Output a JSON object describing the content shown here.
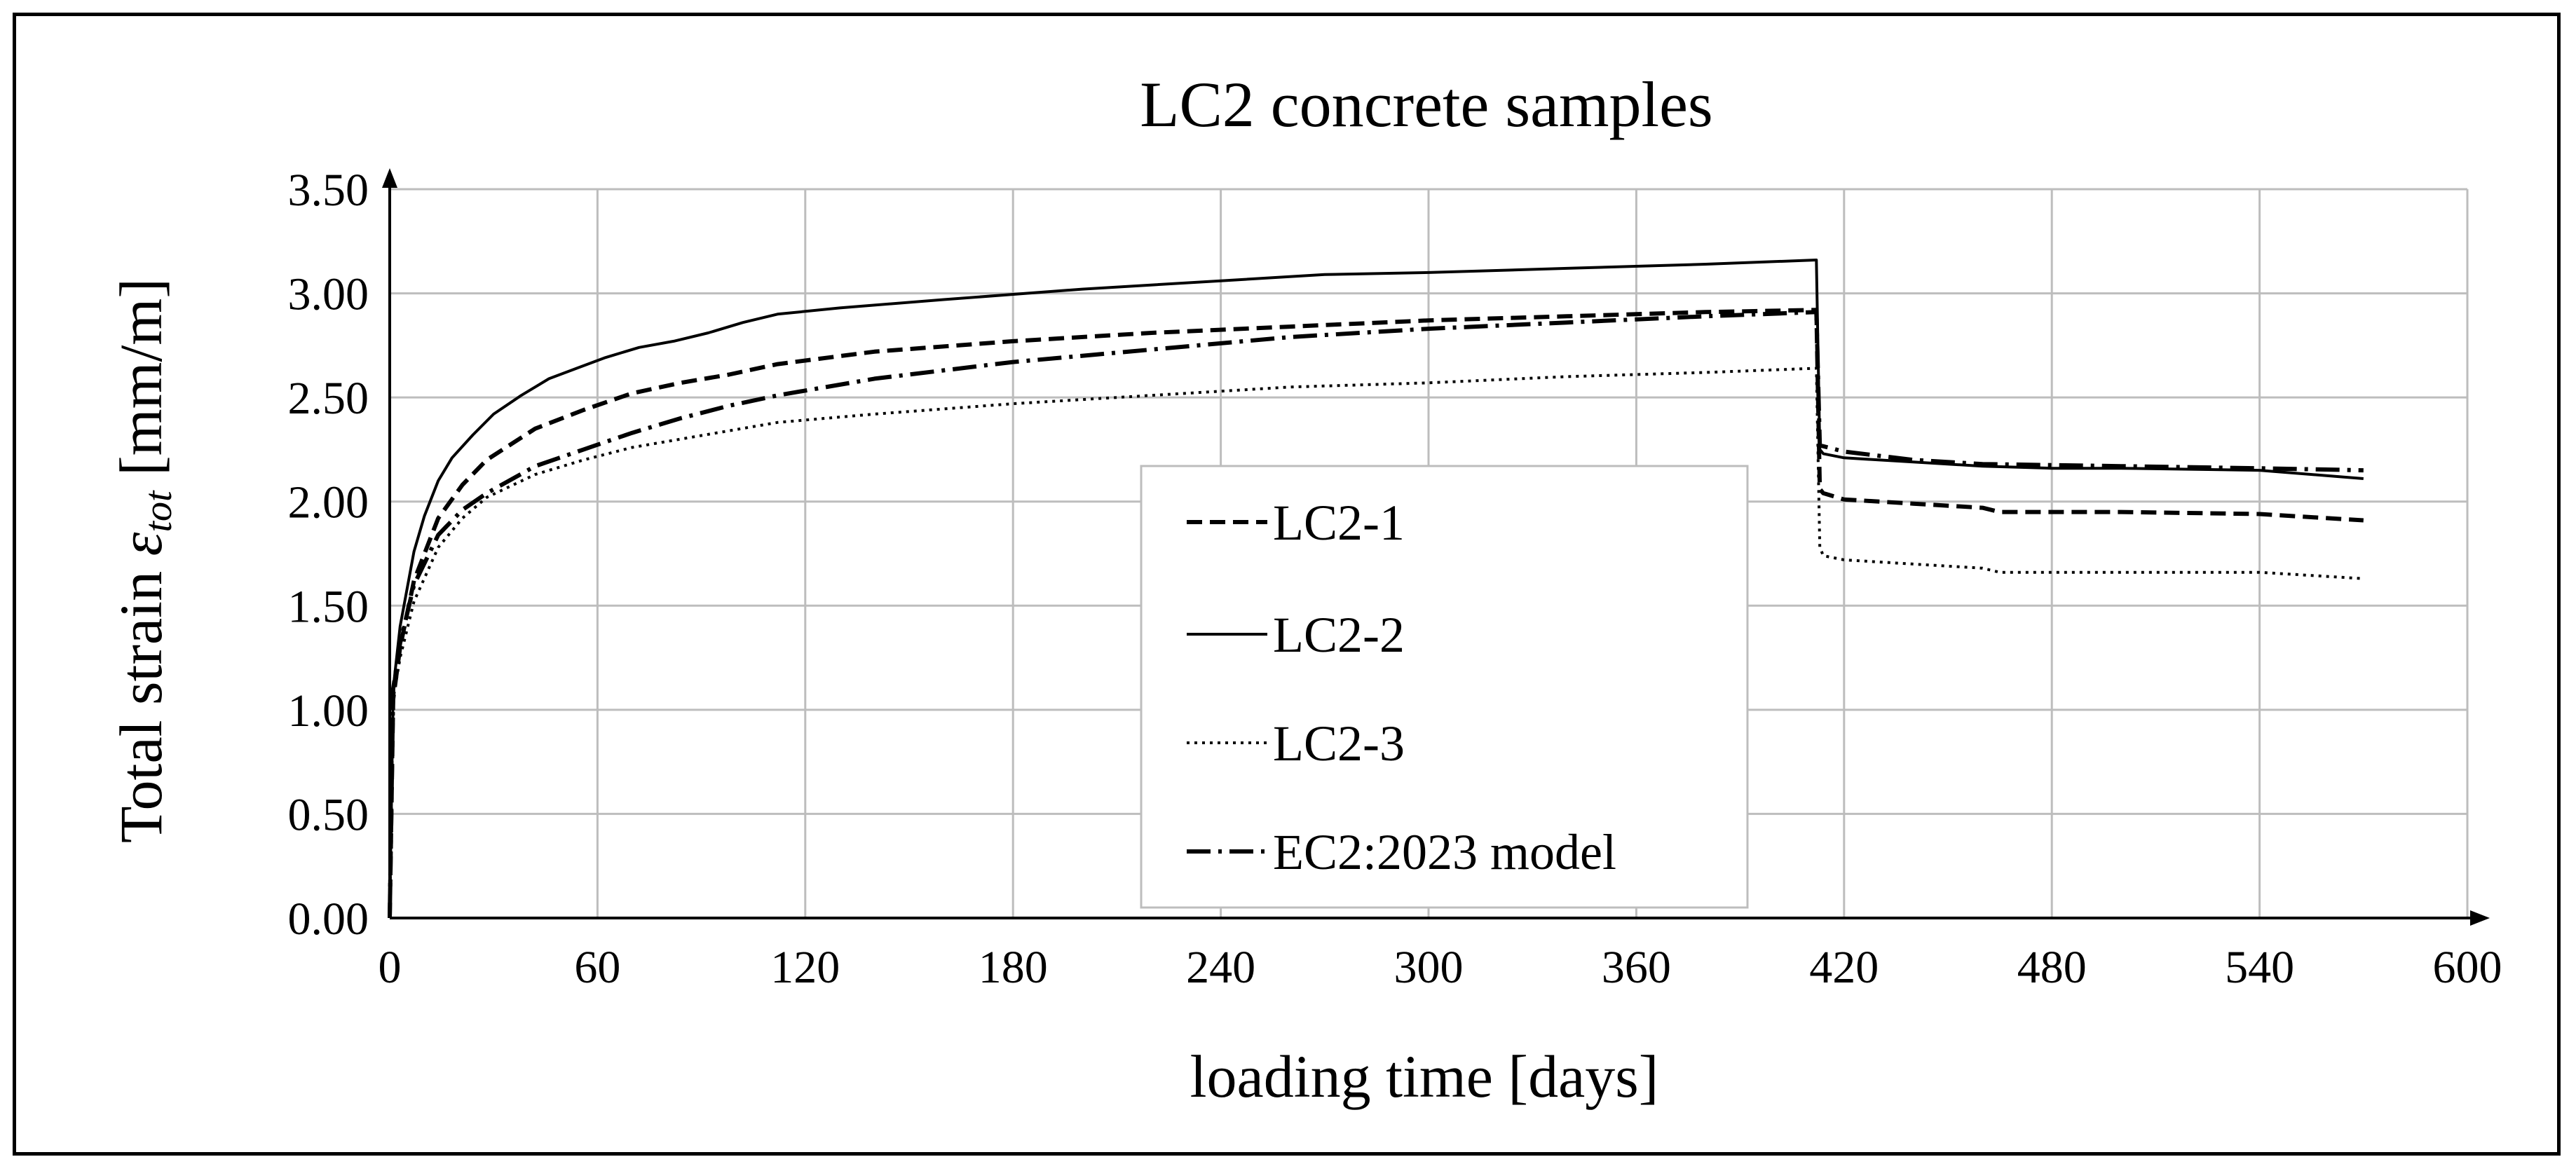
{
  "chart_data": {
    "type": "line",
    "title": "LC2 concrete samples",
    "xlabel": "loading time [days]",
    "ylabel": {
      "prefix": "Total strain ",
      "symbol": "ε",
      "subscript": "tot",
      "suffix": " [mm/m]"
    },
    "xlim": [
      0,
      600
    ],
    "ylim": [
      0,
      3.5
    ],
    "x_ticks": [
      0,
      60,
      120,
      180,
      240,
      300,
      360,
      420,
      480,
      540,
      600
    ],
    "y_ticks": [
      "0.00",
      "0.50",
      "1.00",
      "1.50",
      "2.00",
      "2.50",
      "3.00",
      "3.50"
    ],
    "grid": true,
    "legend_position": "center",
    "series": [
      {
        "name": "LC2-1",
        "style": "dashed",
        "x": [
          0,
          1,
          3,
          7,
          14,
          21,
          28,
          42,
          56,
          70,
          84,
          98,
          112,
          140,
          180,
          220,
          260,
          300,
          340,
          380,
          412,
          413,
          414,
          420,
          440,
          460,
          465,
          500,
          540,
          570
        ],
        "y": [
          0,
          1.05,
          1.3,
          1.62,
          1.92,
          2.08,
          2.2,
          2.35,
          2.44,
          2.52,
          2.57,
          2.61,
          2.66,
          2.72,
          2.77,
          2.81,
          2.84,
          2.87,
          2.89,
          2.91,
          2.92,
          2.06,
          2.04,
          2.01,
          1.99,
          1.97,
          1.95,
          1.95,
          1.94,
          1.91
        ]
      },
      {
        "name": "LC2-2",
        "style": "solid",
        "x": [
          0,
          1,
          3,
          7,
          10,
          14,
          18,
          24,
          30,
          38,
          46,
          54,
          62,
          72,
          82,
          92,
          102,
          112,
          130,
          160,
          200,
          240,
          270,
          300,
          340,
          380,
          412,
          413,
          414,
          420,
          440,
          460,
          480,
          500,
          540,
          570
        ],
        "y": [
          0,
          1.1,
          1.4,
          1.76,
          1.93,
          2.1,
          2.21,
          2.32,
          2.42,
          2.51,
          2.59,
          2.64,
          2.69,
          2.74,
          2.77,
          2.81,
          2.86,
          2.9,
          2.93,
          2.97,
          3.02,
          3.06,
          3.09,
          3.1,
          3.12,
          3.14,
          3.16,
          2.25,
          2.23,
          2.21,
          2.19,
          2.17,
          2.16,
          2.16,
          2.15,
          2.11
        ]
      },
      {
        "name": "LC2-3",
        "style": "dotted",
        "x": [
          0,
          1,
          3,
          7,
          14,
          21,
          28,
          42,
          56,
          70,
          84,
          98,
          112,
          140,
          180,
          220,
          260,
          300,
          340,
          380,
          412,
          413,
          414,
          420,
          440,
          460,
          465,
          500,
          540,
          570
        ],
        "y": [
          0,
          1.05,
          1.25,
          1.52,
          1.78,
          1.92,
          2.02,
          2.13,
          2.2,
          2.26,
          2.3,
          2.34,
          2.38,
          2.42,
          2.47,
          2.51,
          2.55,
          2.57,
          2.6,
          2.62,
          2.64,
          1.78,
          1.74,
          1.72,
          1.7,
          1.68,
          1.66,
          1.66,
          1.66,
          1.63
        ]
      },
      {
        "name": "EC2:2023 model",
        "style": "dashdot",
        "x": [
          0,
          1,
          3,
          7,
          14,
          21,
          28,
          42,
          56,
          70,
          84,
          98,
          112,
          140,
          180,
          220,
          260,
          300,
          340,
          380,
          412,
          413,
          420,
          440,
          460,
          500,
          540,
          570
        ],
        "y": [
          0,
          1.1,
          1.32,
          1.6,
          1.84,
          1.96,
          2.04,
          2.17,
          2.25,
          2.33,
          2.4,
          2.46,
          2.51,
          2.59,
          2.67,
          2.73,
          2.79,
          2.83,
          2.86,
          2.89,
          2.91,
          2.27,
          2.24,
          2.2,
          2.18,
          2.17,
          2.16,
          2.15
        ]
      }
    ]
  }
}
